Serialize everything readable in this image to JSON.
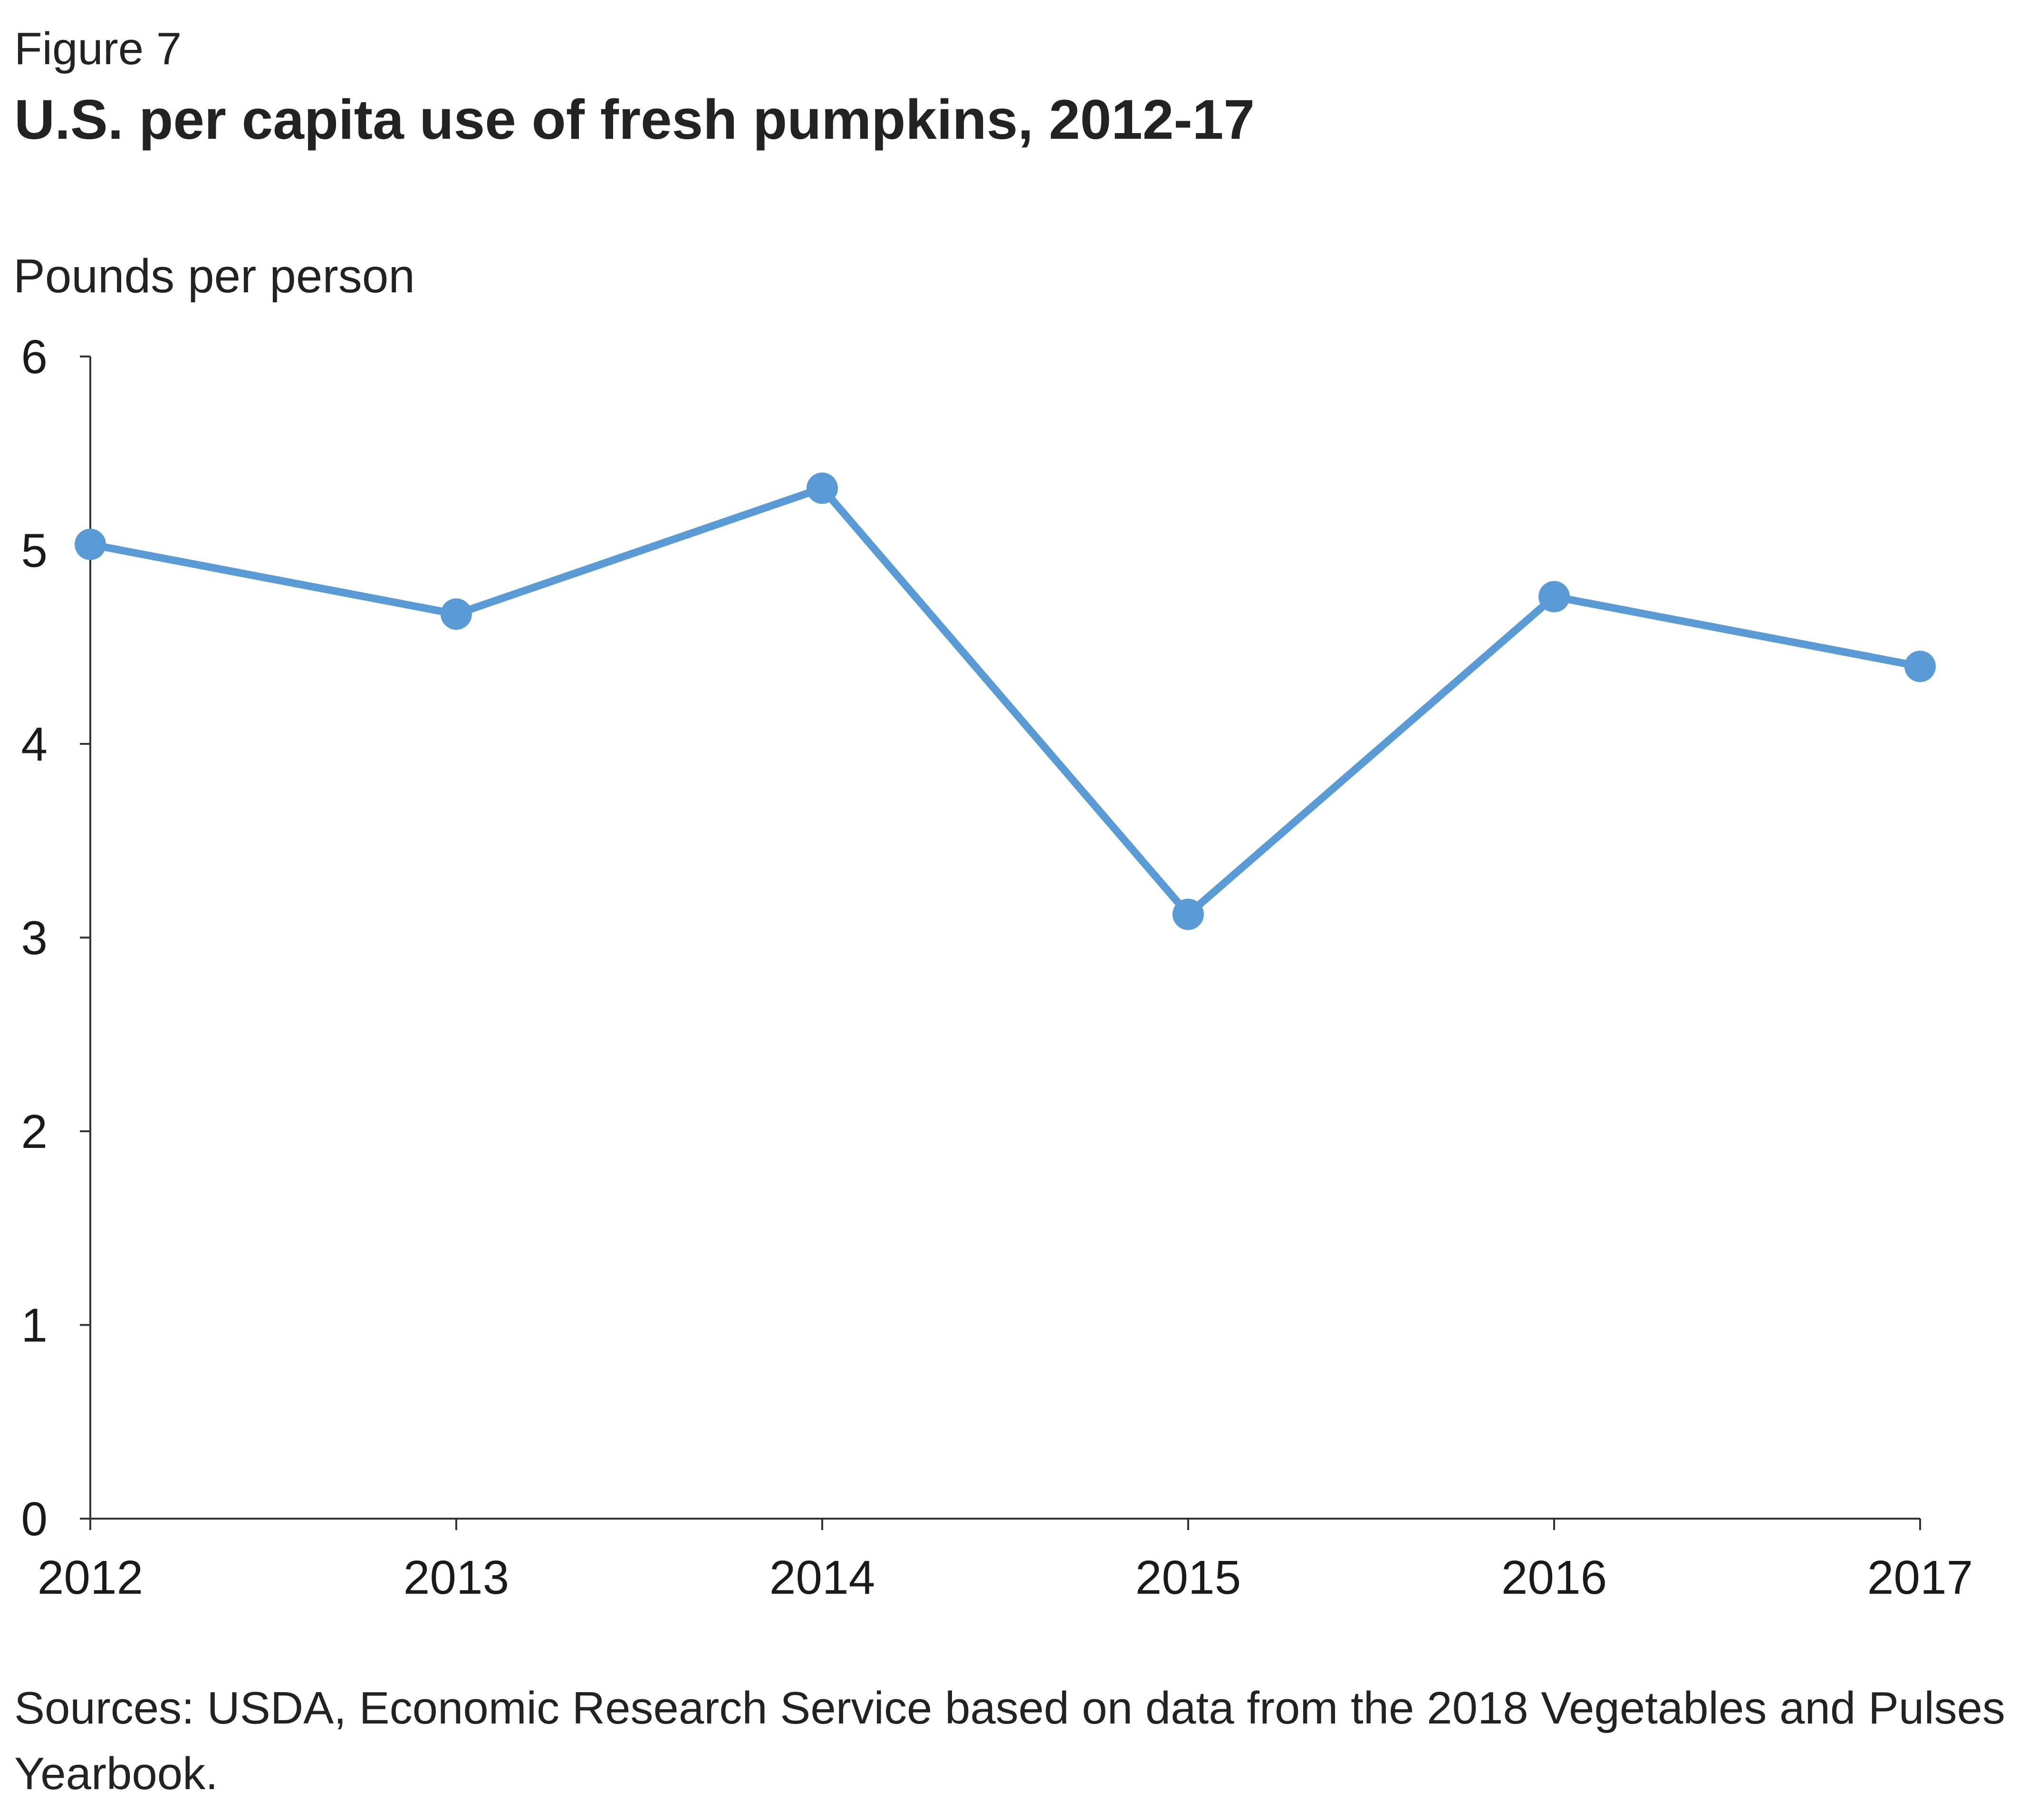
{
  "figure": {
    "label": "Figure 7",
    "title": "U.S. per capita use of fresh pumpkins, 2012-17",
    "source": "Sources: USDA, Economic Research Service based on data from the 2018 Vegetables and Pulses Yearbook."
  },
  "chart_data": {
    "type": "line",
    "title": "U.S. per capita use of fresh pumpkins, 2012-17",
    "xlabel": "",
    "ylabel": "Pounds per person",
    "categories": [
      "2012",
      "2013",
      "2014",
      "2015",
      "2016",
      "2017"
    ],
    "series": [
      {
        "values": [
          5.03,
          4.67,
          5.32,
          3.12,
          4.76,
          4.4
        ],
        "color": "#5b9bd5"
      }
    ],
    "ylim": [
      0,
      6
    ],
    "yticks": [
      "0",
      "1",
      "2",
      "3",
      "4",
      "5",
      "6"
    ],
    "grid": false,
    "legend": "none"
  }
}
